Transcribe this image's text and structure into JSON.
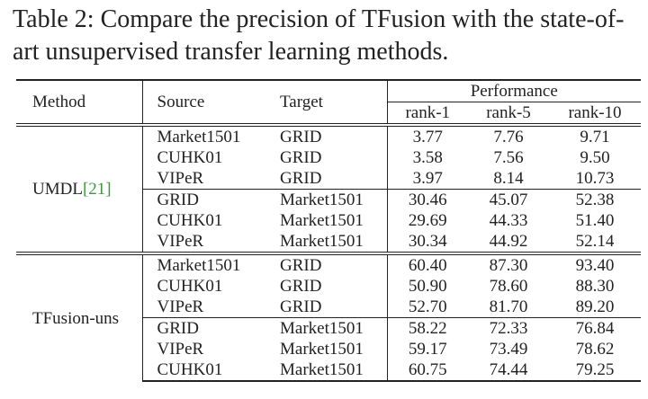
{
  "caption": "Table 2: Compare the precision of TFusion with the state-of-art unsupervised transfer learning methods.",
  "table": {
    "header": {
      "method": "Method",
      "source": "Source",
      "target": "Target",
      "performance": "Performance",
      "ranks": [
        "rank-1",
        "rank-5",
        "rank-10"
      ]
    },
    "groups": [
      {
        "method": "UMDL",
        "ref": "[21]",
        "rows": [
          [
            "Market1501",
            "GRID",
            "3.77",
            "7.76",
            "9.71"
          ],
          [
            "CUHK01",
            "GRID",
            "3.58",
            "7.56",
            "9.50"
          ],
          [
            "VIPeR",
            "GRID",
            "3.97",
            "8.14",
            "10.73"
          ],
          [
            "GRID",
            "Market1501",
            "30.46",
            "45.07",
            "52.38"
          ],
          [
            "CUHK01",
            "Market1501",
            "29.69",
            "44.33",
            "51.40"
          ],
          [
            "VIPeR",
            "Market1501",
            "30.34",
            "44.92",
            "52.14"
          ]
        ]
      },
      {
        "method": "TFusion-uns",
        "rows": [
          [
            "Market1501",
            "GRID",
            "60.40",
            "87.30",
            "93.40"
          ],
          [
            "CUHK01",
            "GRID",
            "50.90",
            "78.60",
            "88.30"
          ],
          [
            "VIPeR",
            "GRID",
            "52.70",
            "81.70",
            "89.20"
          ],
          [
            "GRID",
            "Market1501",
            "58.22",
            "72.33",
            "76.84"
          ],
          [
            "VIPeR",
            "Market1501",
            "59.17",
            "73.49",
            "78.62"
          ],
          [
            "CUHK01",
            "Market1501",
            "60.75",
            "74.44",
            "79.25"
          ]
        ]
      }
    ]
  }
}
